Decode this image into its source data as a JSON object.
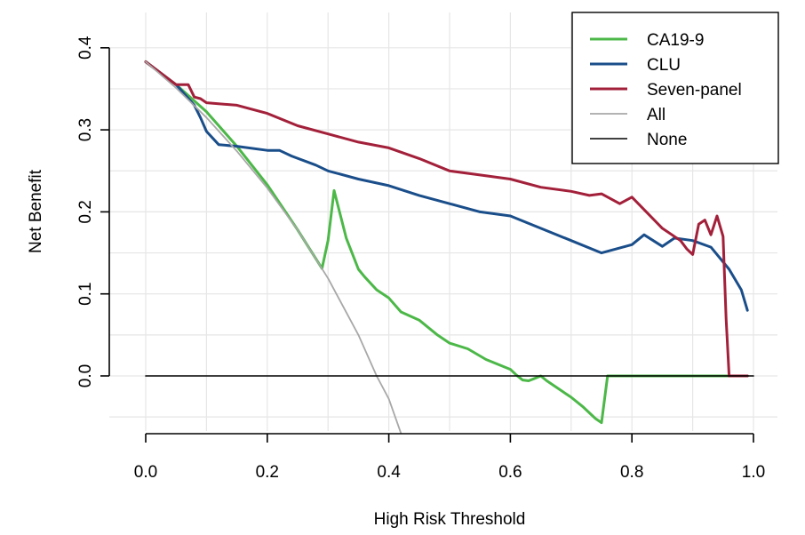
{
  "chart_data": {
    "type": "line",
    "title": "",
    "xlabel": "High Risk Threshold",
    "ylabel": "Net Benefit",
    "xlim": [
      0.0,
      1.0
    ],
    "ylim": [
      -0.07,
      0.42
    ],
    "x_ticks": [
      0.0,
      0.2,
      0.4,
      0.6,
      0.8,
      1.0
    ],
    "x_tick_labels": [
      "0.0",
      "0.2",
      "0.4",
      "0.6",
      "0.8",
      "1.0"
    ],
    "y_ticks": [
      0.0,
      0.1,
      0.2,
      0.3,
      0.4
    ],
    "y_tick_labels": [
      "0.0",
      "0.1",
      "0.2",
      "0.3",
      "0.4"
    ],
    "grid": true,
    "legend_position": "top-right",
    "series": [
      {
        "name": "CA19-9",
        "color": "#4cb848",
        "x": [
          0.0,
          0.05,
          0.1,
          0.15,
          0.2,
          0.25,
          0.29,
          0.3,
          0.31,
          0.33,
          0.35,
          0.36,
          0.38,
          0.4,
          0.42,
          0.45,
          0.48,
          0.5,
          0.53,
          0.56,
          0.6,
          0.61,
          0.62,
          0.63,
          0.64,
          0.65,
          0.66,
          0.68,
          0.7,
          0.72,
          0.74,
          0.75,
          0.76,
          0.8,
          0.9,
          0.99
        ],
        "y": [
          0.383,
          0.355,
          0.322,
          0.28,
          0.233,
          0.178,
          0.131,
          0.165,
          0.226,
          0.168,
          0.13,
          0.121,
          0.105,
          0.095,
          0.078,
          0.068,
          0.05,
          0.04,
          0.033,
          0.02,
          0.008,
          0.001,
          -0.005,
          -0.006,
          -0.003,
          0.0,
          -0.006,
          -0.016,
          -0.026,
          -0.038,
          -0.052,
          -0.057,
          0.0,
          0.0,
          0.0,
          0.0
        ]
      },
      {
        "name": "CLU",
        "color": "#1a4e8a",
        "x": [
          0.0,
          0.05,
          0.08,
          0.09,
          0.1,
          0.12,
          0.15,
          0.2,
          0.22,
          0.24,
          0.28,
          0.3,
          0.35,
          0.4,
          0.45,
          0.5,
          0.55,
          0.6,
          0.65,
          0.7,
          0.75,
          0.8,
          0.82,
          0.85,
          0.87,
          0.9,
          0.93,
          0.96,
          0.98,
          0.99
        ],
        "y": [
          0.383,
          0.355,
          0.33,
          0.315,
          0.298,
          0.282,
          0.28,
          0.275,
          0.275,
          0.268,
          0.257,
          0.25,
          0.24,
          0.232,
          0.22,
          0.21,
          0.2,
          0.195,
          0.18,
          0.165,
          0.15,
          0.16,
          0.172,
          0.158,
          0.168,
          0.165,
          0.157,
          0.13,
          0.105,
          0.08
        ]
      },
      {
        "name": "Seven-panel",
        "color": "#a3203a",
        "x": [
          0.0,
          0.05,
          0.07,
          0.08,
          0.09,
          0.1,
          0.15,
          0.2,
          0.25,
          0.3,
          0.35,
          0.4,
          0.45,
          0.5,
          0.55,
          0.6,
          0.65,
          0.7,
          0.73,
          0.75,
          0.78,
          0.8,
          0.85,
          0.88,
          0.89,
          0.9,
          0.91,
          0.92,
          0.93,
          0.94,
          0.95,
          0.955,
          0.96,
          0.99
        ],
        "y": [
          0.383,
          0.355,
          0.355,
          0.34,
          0.338,
          0.333,
          0.33,
          0.32,
          0.305,
          0.295,
          0.285,
          0.278,
          0.265,
          0.25,
          0.245,
          0.24,
          0.23,
          0.225,
          0.22,
          0.222,
          0.21,
          0.218,
          0.18,
          0.165,
          0.155,
          0.148,
          0.185,
          0.19,
          0.172,
          0.195,
          0.17,
          0.07,
          0.0,
          0.0
        ]
      },
      {
        "name": "All",
        "color": "#a8a8a8",
        "x": [
          0.0,
          0.05,
          0.1,
          0.15,
          0.2,
          0.25,
          0.3,
          0.35,
          0.38,
          0.4,
          0.42
        ],
        "y": [
          0.383,
          0.351,
          0.315,
          0.274,
          0.229,
          0.178,
          0.119,
          0.05,
          0.0,
          -0.028,
          -0.07
        ]
      },
      {
        "name": "None",
        "color": "#000000",
        "x": [
          0.0,
          1.0
        ],
        "y": [
          0.0,
          0.0
        ]
      }
    ]
  }
}
